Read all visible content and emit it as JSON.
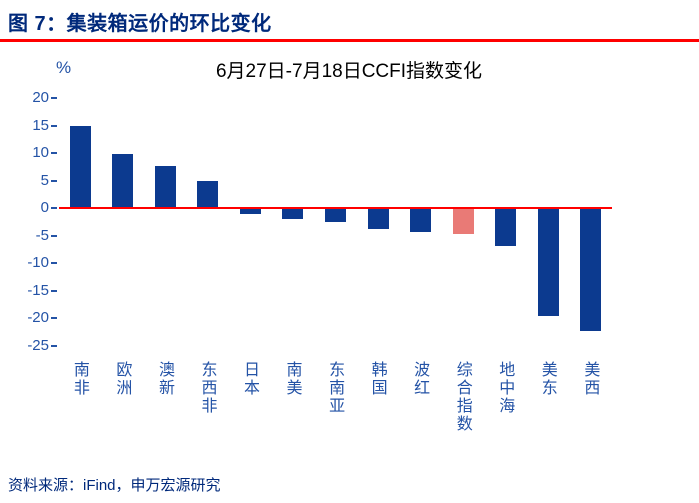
{
  "header": {
    "title": "图 7：集装箱运价的环比变化"
  },
  "source": {
    "text": "资料来源：iFind，申万宏源研究"
  },
  "colors": {
    "header_text": "#00297B",
    "underline": "#FF0000",
    "axis_text": "#2453A6",
    "chart_title_text": "#000000",
    "bar": "#0C3A8F",
    "highlight_bar": "#E97A76",
    "zero_line": "#FF0000",
    "source_text": "#00297B"
  },
  "chart_data": {
    "type": "bar",
    "title": "6月27日-7月18日CCFI指数变化",
    "unit_label": "%",
    "categories": [
      "南非",
      "欧洲",
      "澳新",
      "东西非",
      "日本",
      "南美",
      "东南亚",
      "韩国",
      "波红",
      "综合指数",
      "地中海",
      "美东",
      "美西"
    ],
    "values": [
      15,
      9.9,
      7.6,
      5,
      -1,
      -2,
      -2.5,
      -3.9,
      -4.3,
      -4.8,
      -6.9,
      -19.6,
      -22.3
    ],
    "highlight_index": 9,
    "highlight_note": "综合指数 bar drawn in salmon red, all others navy blue",
    "ylim": [
      -25,
      20
    ],
    "yticks": [
      20,
      15,
      10,
      5,
      0,
      -5,
      -10,
      -15,
      -20,
      -25
    ],
    "grid": false,
    "legend": null,
    "zero_line_color": "#FF0000"
  }
}
